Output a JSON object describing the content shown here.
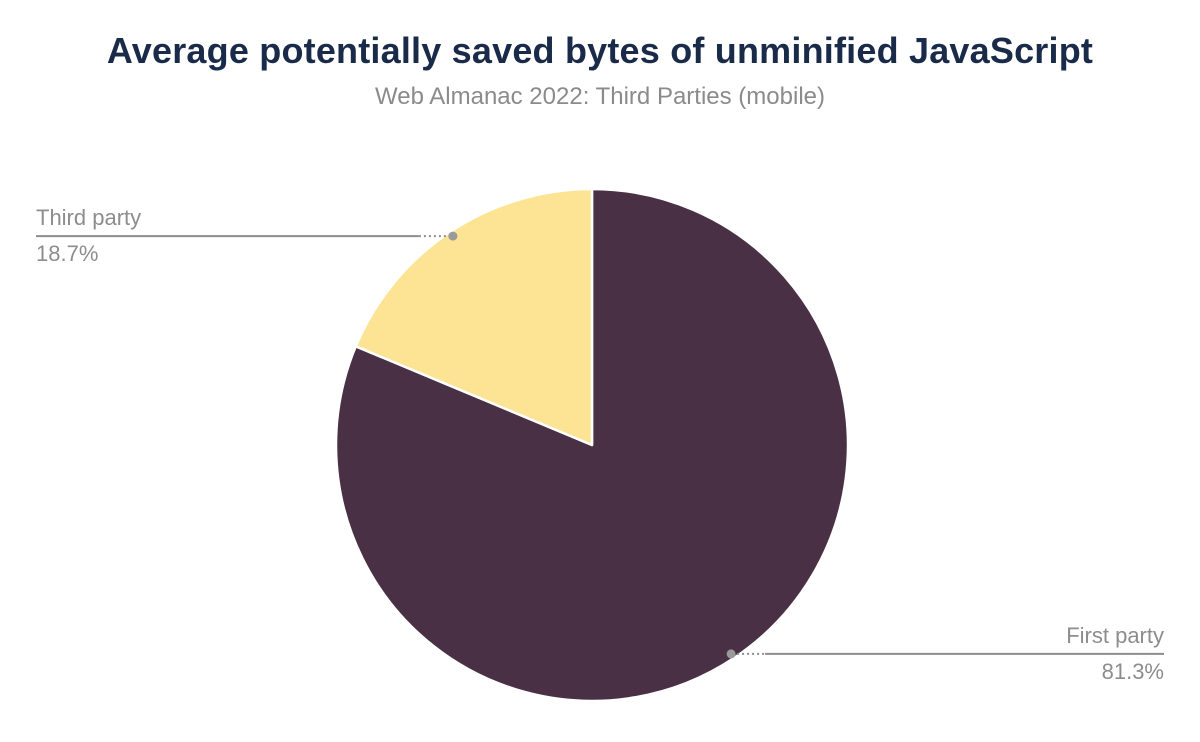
{
  "header": {
    "title": "Average potentially saved bytes of unminified JavaScript",
    "subtitle": "Web Almanac 2022: Third Parties (mobile)"
  },
  "chart_data": {
    "type": "pie",
    "title": "Average potentially saved bytes of unminified JavaScript",
    "subtitle": "Web Almanac 2022: Third Parties (mobile)",
    "unit": "%",
    "direction": "clockwise",
    "start_angle_deg": 0,
    "legend_position": "none",
    "label_style": "outside-callouts-with-leader-lines",
    "slices": [
      {
        "label": "First party",
        "value": 81.3,
        "display": "81.3%",
        "color": "#493045",
        "callout_side": "right"
      },
      {
        "label": "Third party",
        "value": 18.7,
        "display": "18.7%",
        "color": "#fde394",
        "callout_side": "left"
      }
    ]
  },
  "colors": {
    "background": "#ffffff",
    "title_text": "#1a2b49",
    "subtitle_text": "#8b8b8b",
    "callout_text": "#8d8d8d",
    "leader_line": "#8d8d8d",
    "leader_dot": "#9a9a9a",
    "slice_separator": "#ffffff"
  }
}
